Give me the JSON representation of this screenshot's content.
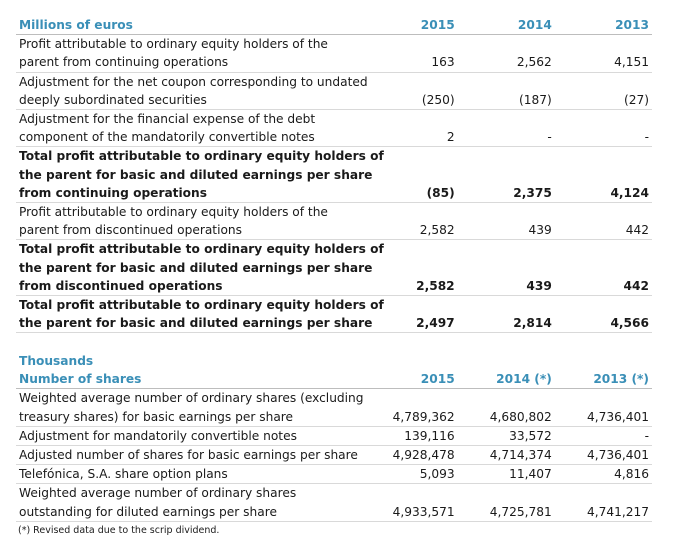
{
  "table1": {
    "header": {
      "label": "Millions of euros",
      "y2015": "2015",
      "y2014": "2014",
      "y2013": "2013"
    },
    "rows": [
      {
        "lines": [
          "Profit attributable to ordinary equity holders of the",
          "parent from continuing operations"
        ],
        "v2015": "163",
        "v2014": "2,562",
        "v2013": "4,151",
        "bold": false
      },
      {
        "lines": [
          "Adjustment for the net coupon corresponding to undated",
          "deeply subordinated securities"
        ],
        "v2015": "(250)",
        "v2014": "(187)",
        "v2013": "(27)",
        "bold": false
      },
      {
        "lines": [
          "Adjustment for the financial expense of the debt",
          "component of the mandatorily convertible notes"
        ],
        "v2015": "2",
        "v2014": "-",
        "v2013": "-",
        "bold": false
      },
      {
        "lines": [
          "Total profit attributable to ordinary equity holders of",
          "the parent for basic and diluted earnings per share",
          "from continuing operations"
        ],
        "v2015": "(85)",
        "v2014": "2,375",
        "v2013": "4,124",
        "bold": true
      },
      {
        "lines": [
          "Profit attributable to ordinary equity holders of the",
          "parent from discontinued operations"
        ],
        "v2015": "2,582",
        "v2014": "439",
        "v2013": "442",
        "bold": false
      },
      {
        "lines": [
          "Total profit attributable to ordinary equity holders of",
          "the parent for basic and diluted earnings per share",
          "from discontinued operations"
        ],
        "v2015": "2,582",
        "v2014": "439",
        "v2013": "442",
        "bold": true
      },
      {
        "lines": [
          "Total profit attributable to ordinary equity holders of",
          "the parent for basic and diluted earnings per share"
        ],
        "v2015": "2,497",
        "v2014": "2,814",
        "v2013": "4,566",
        "bold": true
      }
    ]
  },
  "table2": {
    "unit_label": "Thousands",
    "header": {
      "label": "Number of shares",
      "y2015": "2015",
      "y2014": "2014 (*)",
      "y2013": "2013 (*)"
    },
    "rows": [
      {
        "lines": [
          "Weighted average number of ordinary shares (excluding",
          "treasury shares) for basic earnings per share"
        ],
        "v2015": "4,789,362",
        "v2014": "4,680,802",
        "v2013": "4,736,401"
      },
      {
        "lines": [
          "Adjustment for mandatorily convertible notes"
        ],
        "v2015": "139,116",
        "v2014": "33,572",
        "v2013": "-"
      },
      {
        "lines": [
          "Adjusted number of shares for basic earnings per share"
        ],
        "v2015": "4,928,478",
        "v2014": "4,714,374",
        "v2013": "4,736,401"
      },
      {
        "lines": [
          "Telefónica, S.A. share option plans"
        ],
        "v2015": "5,093",
        "v2014": "11,407",
        "v2013": "4,816"
      },
      {
        "lines": [
          "Weighted average number of ordinary shares",
          "outstanding for diluted earnings per share"
        ],
        "v2015": "4,933,571",
        "v2014": "4,725,781",
        "v2013": "4,741,217"
      }
    ]
  },
  "footnote": "(*) Revised data due to the scrip dividend.",
  "colors": {
    "header": "#3a8fb7",
    "rule": "#d9d9d9"
  }
}
